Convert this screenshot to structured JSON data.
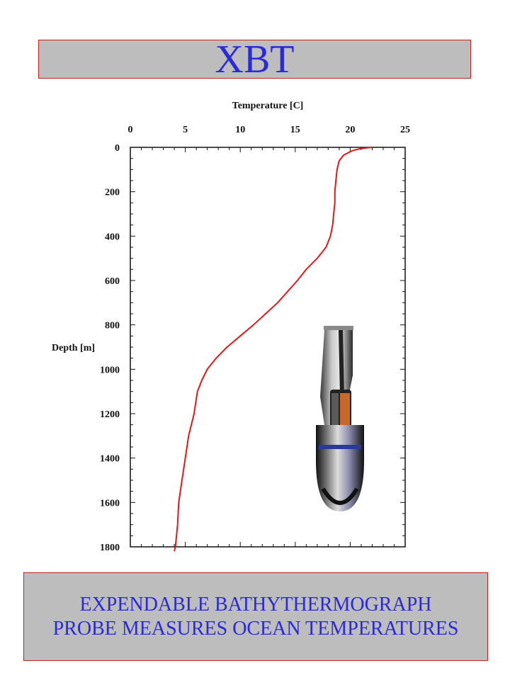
{
  "title": "XBT",
  "caption": "EXPENDABLE BATHYTHERMOGRAPH PROBE MEASURES OCEAN TEMPERATURES",
  "colors": {
    "title_text": "#2a2ad8",
    "box_fill": "#bdbdbd",
    "box_border": "#cc2020",
    "line": "#e01818"
  },
  "chart_data": {
    "type": "line",
    "xlabel": "Temperature [C]",
    "ylabel": "Depth [m]",
    "xlim": [
      0,
      25
    ],
    "ylim": [
      0,
      1800
    ],
    "y_inverted": true,
    "x_axis_position": "top",
    "x_ticks": [
      0,
      5,
      10,
      15,
      20,
      25
    ],
    "y_ticks": [
      0,
      200,
      400,
      600,
      800,
      1000,
      1200,
      1400,
      1600,
      1800
    ],
    "y_tick_labels": [
      "0",
      "200",
      "400",
      "600",
      "800",
      "1000",
      "1200",
      "1400",
      "1600",
      "1800"
    ],
    "grid": false,
    "series": [
      {
        "color": "#e01818",
        "points": [
          [
            22,
            0
          ],
          [
            21,
            5
          ],
          [
            20.2,
            15
          ],
          [
            19.4,
            35
          ],
          [
            19.0,
            60
          ],
          [
            18.8,
            100
          ],
          [
            18.7,
            150
          ],
          [
            18.6,
            200
          ],
          [
            18.6,
            250
          ],
          [
            18.5,
            300
          ],
          [
            18.4,
            350
          ],
          [
            18.2,
            400
          ],
          [
            17.8,
            450
          ],
          [
            17.0,
            500
          ],
          [
            16.0,
            550
          ],
          [
            15.2,
            600
          ],
          [
            14.3,
            650
          ],
          [
            13.4,
            700
          ],
          [
            12.3,
            750
          ],
          [
            11.2,
            800
          ],
          [
            10.0,
            850
          ],
          [
            8.8,
            900
          ],
          [
            7.8,
            950
          ],
          [
            7.0,
            1000
          ],
          [
            6.5,
            1050
          ],
          [
            6.1,
            1100
          ],
          [
            5.8,
            1200
          ],
          [
            5.3,
            1300
          ],
          [
            5.0,
            1400
          ],
          [
            4.7,
            1500
          ],
          [
            4.4,
            1600
          ],
          [
            4.3,
            1700
          ],
          [
            4.1,
            1800
          ],
          [
            4.0,
            1820
          ]
        ]
      }
    ]
  },
  "probe_image": {
    "icon": "xbt-probe-icon"
  }
}
